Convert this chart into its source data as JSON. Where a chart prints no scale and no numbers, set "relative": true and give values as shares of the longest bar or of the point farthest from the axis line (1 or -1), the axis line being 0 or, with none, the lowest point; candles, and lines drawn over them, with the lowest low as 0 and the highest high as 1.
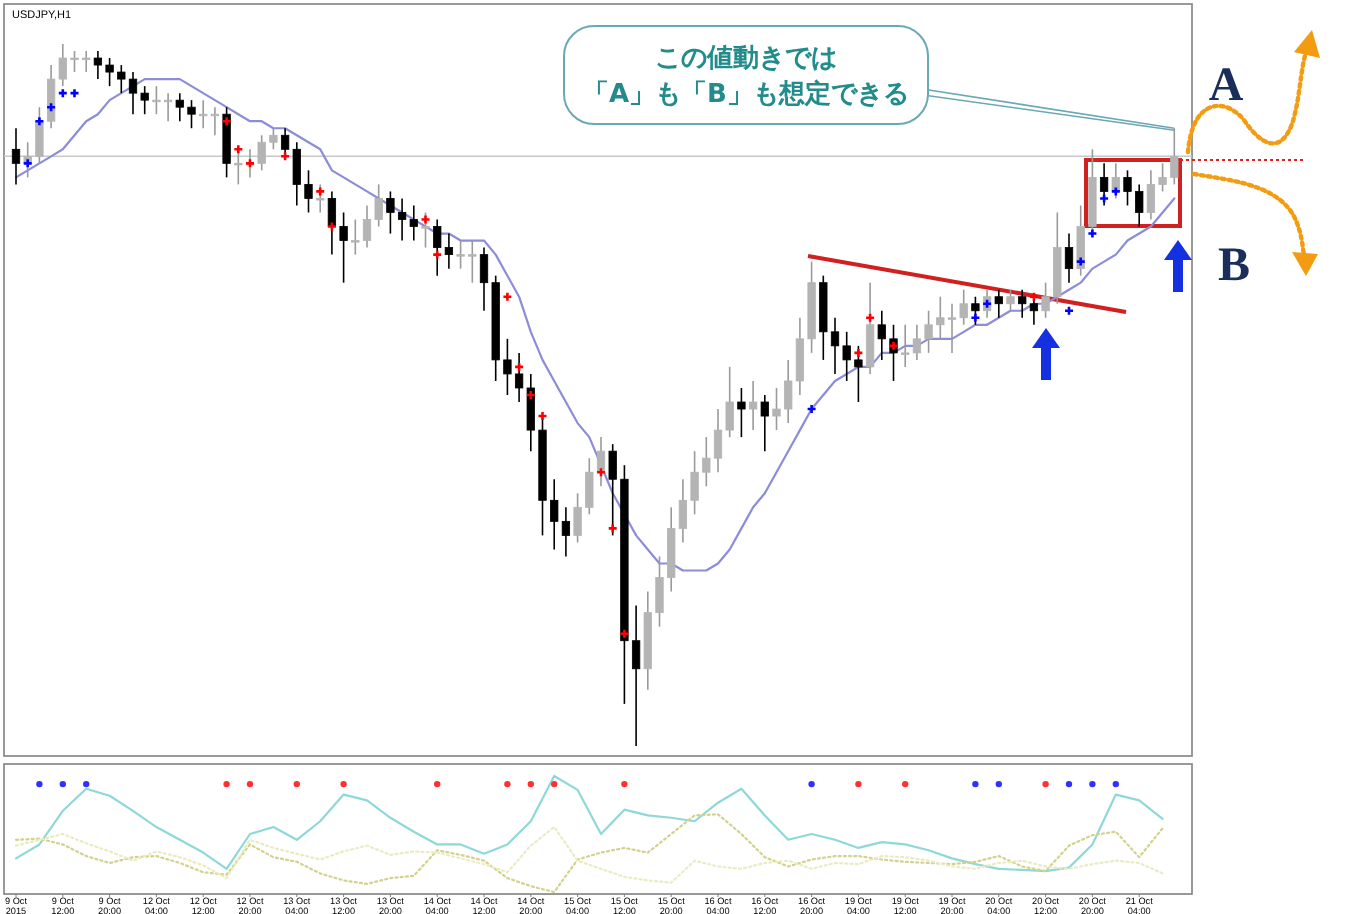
{
  "chart_data": [
    {
      "type": "candlestick",
      "title": "USDJPY,H1",
      "relative": true,
      "categories": [
        null,
        null,
        null,
        null,
        null,
        null,
        null,
        null,
        null,
        null,
        null,
        null,
        null,
        null,
        null,
        null,
        null,
        null,
        null,
        null,
        null,
        null,
        null,
        null,
        null,
        null,
        null,
        null,
        null,
        null,
        null,
        null,
        null,
        null,
        null,
        null,
        null,
        null,
        null,
        null,
        null,
        null,
        null,
        null,
        null,
        null,
        null,
        null,
        null,
        null,
        null,
        null,
        null,
        null,
        null,
        null,
        null,
        null,
        null,
        null,
        null,
        null,
        null,
        null,
        null,
        null,
        null,
        null,
        null,
        null,
        null,
        null,
        null,
        null,
        null,
        null,
        null,
        null,
        null,
        null,
        null,
        null,
        null,
        null,
        null,
        null,
        null,
        null,
        null,
        null,
        null,
        null,
        null,
        null,
        null,
        null,
        null,
        null,
        null,
        null
      ],
      "ohlc": [
        [
          0.85,
          0.88,
          0.8,
          0.83
        ],
        [
          0.83,
          0.86,
          0.81,
          0.84
        ],
        [
          0.84,
          0.91,
          0.83,
          0.89
        ],
        [
          0.89,
          0.97,
          0.88,
          0.95
        ],
        [
          0.95,
          1,
          0.94,
          0.98
        ],
        [
          0.98,
          0.99,
          0.96,
          0.98
        ],
        [
          0.98,
          0.99,
          0.96,
          0.98
        ],
        [
          0.98,
          0.99,
          0.95,
          0.97
        ],
        [
          0.97,
          0.98,
          0.94,
          0.96
        ],
        [
          0.96,
          0.97,
          0.93,
          0.95
        ],
        [
          0.95,
          0.96,
          0.9,
          0.93
        ],
        [
          0.93,
          0.94,
          0.9,
          0.92
        ],
        [
          0.92,
          0.94,
          0.9,
          0.92
        ],
        [
          0.92,
          0.93,
          0.89,
          0.92
        ],
        [
          0.92,
          0.93,
          0.89,
          0.91
        ],
        [
          0.91,
          0.92,
          0.88,
          0.9
        ],
        [
          0.9,
          0.92,
          0.88,
          0.9
        ],
        [
          0.9,
          0.91,
          0.87,
          0.9
        ],
        [
          0.9,
          0.91,
          0.81,
          0.83
        ],
        [
          0.83,
          0.85,
          0.8,
          0.83
        ],
        [
          0.83,
          0.85,
          0.81,
          0.83
        ],
        [
          0.83,
          0.87,
          0.82,
          0.86
        ],
        [
          0.86,
          0.88,
          0.85,
          0.87
        ],
        [
          0.87,
          0.88,
          0.84,
          0.85
        ],
        [
          0.85,
          0.86,
          0.77,
          0.8
        ],
        [
          0.8,
          0.82,
          0.76,
          0.78
        ],
        [
          0.78,
          0.8,
          0.76,
          0.78
        ],
        [
          0.78,
          0.79,
          0.7,
          0.74
        ],
        [
          0.74,
          0.76,
          0.66,
          0.72
        ],
        [
          0.72,
          0.75,
          0.7,
          0.72
        ],
        [
          0.72,
          0.77,
          0.71,
          0.75
        ],
        [
          0.75,
          0.8,
          0.74,
          0.78
        ],
        [
          0.78,
          0.79,
          0.73,
          0.76
        ],
        [
          0.76,
          0.78,
          0.72,
          0.75
        ],
        [
          0.75,
          0.77,
          0.72,
          0.74
        ],
        [
          0.74,
          0.76,
          0.71,
          0.74
        ],
        [
          0.74,
          0.75,
          0.67,
          0.71
        ],
        [
          0.71,
          0.73,
          0.68,
          0.7
        ],
        [
          0.7,
          0.72,
          0.68,
          0.7
        ],
        [
          0.7,
          0.72,
          0.66,
          0.7
        ],
        [
          0.7,
          0.71,
          0.62,
          0.66
        ],
        [
          0.66,
          0.67,
          0.52,
          0.55
        ],
        [
          0.55,
          0.58,
          0.5,
          0.53
        ],
        [
          0.53,
          0.56,
          0.49,
          0.51
        ],
        [
          0.51,
          0.53,
          0.42,
          0.45
        ],
        [
          0.45,
          0.47,
          0.3,
          0.35
        ],
        [
          0.35,
          0.38,
          0.28,
          0.32
        ],
        [
          0.32,
          0.34,
          0.27,
          0.3
        ],
        [
          0.3,
          0.36,
          0.29,
          0.34
        ],
        [
          0.34,
          0.41,
          0.33,
          0.39
        ],
        [
          0.39,
          0.44,
          0.37,
          0.42
        ],
        [
          0.42,
          0.43,
          0.3,
          0.38
        ],
        [
          0.38,
          0.4,
          0.06,
          0.15
        ],
        [
          0.15,
          0.2,
          0,
          0.11
        ],
        [
          0.11,
          0.22,
          0.08,
          0.19
        ],
        [
          0.19,
          0.27,
          0.17,
          0.24
        ],
        [
          0.24,
          0.34,
          0.22,
          0.31
        ],
        [
          0.31,
          0.38,
          0.29,
          0.35
        ],
        [
          0.35,
          0.42,
          0.33,
          0.39
        ],
        [
          0.39,
          0.44,
          0.37,
          0.41
        ],
        [
          0.41,
          0.48,
          0.39,
          0.45
        ],
        [
          0.45,
          0.54,
          0.44,
          0.49
        ],
        [
          0.49,
          0.51,
          0.44,
          0.48
        ],
        [
          0.48,
          0.52,
          0.45,
          0.49
        ],
        [
          0.49,
          0.5,
          0.42,
          0.47
        ],
        [
          0.47,
          0.51,
          0.45,
          0.48
        ],
        [
          0.48,
          0.55,
          0.46,
          0.52
        ],
        [
          0.52,
          0.61,
          0.5,
          0.58
        ],
        [
          0.58,
          0.69,
          0.56,
          0.66
        ],
        [
          0.66,
          0.67,
          0.55,
          0.59
        ],
        [
          0.59,
          0.61,
          0.53,
          0.57
        ],
        [
          0.57,
          0.59,
          0.52,
          0.55
        ],
        [
          0.55,
          0.57,
          0.49,
          0.54
        ],
        [
          0.54,
          0.66,
          0.53,
          0.6
        ],
        [
          0.6,
          0.62,
          0.55,
          0.58
        ],
        [
          0.58,
          0.6,
          0.52,
          0.56
        ],
        [
          0.56,
          0.6,
          0.54,
          0.56
        ],
        [
          0.56,
          0.6,
          0.55,
          0.58
        ],
        [
          0.58,
          0.62,
          0.56,
          0.6
        ],
        [
          0.6,
          0.64,
          0.58,
          0.61
        ],
        [
          0.61,
          0.63,
          0.56,
          0.61
        ],
        [
          0.61,
          0.65,
          0.6,
          0.63
        ],
        [
          0.63,
          0.64,
          0.6,
          0.62
        ],
        [
          0.62,
          0.65,
          0.61,
          0.64
        ],
        [
          0.64,
          0.65,
          0.61,
          0.63
        ],
        [
          0.63,
          0.65,
          0.62,
          0.64
        ],
        [
          0.64,
          0.65,
          0.61,
          0.63
        ],
        [
          0.63,
          0.64,
          0.6,
          0.62
        ],
        [
          0.62,
          0.66,
          0.61,
          0.64
        ],
        [
          0.64,
          0.76,
          0.63,
          0.71
        ],
        [
          0.71,
          0.73,
          0.66,
          0.68
        ],
        [
          0.68,
          0.77,
          0.67,
          0.74
        ],
        [
          0.74,
          0.85,
          0.73,
          0.81
        ],
        [
          0.81,
          0.83,
          0.77,
          0.79
        ],
        [
          0.79,
          0.83,
          0.78,
          0.81
        ],
        [
          0.81,
          0.82,
          0.77,
          0.79
        ],
        [
          0.79,
          0.8,
          0.74,
          0.76
        ],
        [
          0.76,
          0.82,
          0.75,
          0.8
        ],
        [
          0.8,
          0.83,
          0.79,
          0.81
        ],
        [
          0.81,
          0.88,
          0.8,
          0.84
        ]
      ],
      "series": [
        {
          "type": "line",
          "color": "#8c8cd8",
          "values": [
            0.81,
            0.82,
            0.83,
            0.84,
            0.85,
            0.87,
            0.89,
            0.9,
            0.92,
            0.93,
            0.94,
            0.95,
            0.95,
            0.95,
            0.95,
            0.94,
            0.93,
            0.92,
            0.91,
            0.9,
            0.89,
            0.89,
            0.88,
            0.88,
            0.87,
            0.86,
            0.85,
            0.82,
            0.81,
            0.8,
            0.79,
            0.78,
            0.77,
            0.76,
            0.75,
            0.74,
            0.73,
            0.73,
            0.72,
            0.72,
            0.72,
            0.7,
            0.67,
            0.64,
            0.59,
            0.55,
            0.52,
            0.49,
            0.46,
            0.44,
            0.4,
            0.36,
            0.33,
            0.3,
            0.28,
            0.26,
            0.26,
            0.25,
            0.25,
            0.25,
            0.26,
            0.28,
            0.31,
            0.34,
            0.36,
            0.39,
            0.42,
            0.45,
            0.48,
            0.5,
            0.52,
            0.53,
            0.54,
            0.54,
            0.56,
            0.56,
            0.57,
            0.57,
            0.58,
            0.58,
            0.58,
            0.59,
            0.6,
            0.6,
            0.61,
            0.62,
            0.62,
            0.63,
            0.63,
            0.64,
            0.65,
            0.66,
            0.68,
            0.69,
            0.7,
            0.72,
            0.73,
            0.74,
            0.76,
            0.78
          ]
        },
        {
          "type": "scatter",
          "marker": "cross",
          "color": "#ff0000",
          "values": [
            null,
            null,
            null,
            null,
            null,
            null,
            null,
            null,
            null,
            null,
            null,
            null,
            null,
            null,
            null,
            null,
            null,
            null,
            0.89,
            0.85,
            0.83,
            null,
            null,
            0.84,
            null,
            null,
            0.79,
            0.74,
            null,
            null,
            null,
            null,
            null,
            null,
            null,
            0.75,
            0.7,
            null,
            null,
            null,
            null,
            null,
            0.64,
            0.54,
            0.5,
            0.47,
            null,
            null,
            null,
            null,
            0.39,
            0.31,
            0.16,
            null,
            null,
            null,
            null,
            null,
            null,
            null,
            null,
            null,
            null,
            null,
            null,
            null,
            null,
            null,
            null,
            null,
            null,
            null,
            0.56,
            0.61,
            null,
            0.57,
            null,
            null,
            null,
            null,
            null,
            null,
            null,
            null,
            null,
            null,
            null,
            0.64,
            null,
            null,
            null,
            null,
            null,
            null,
            null,
            null,
            null,
            null,
            null,
            null
          ]
        },
        {
          "type": "scatter",
          "marker": "cross",
          "color": "#0000ff",
          "values": [
            null,
            0.83,
            0.89,
            0.91,
            0.93,
            0.93,
            null,
            null,
            null,
            null,
            null,
            null,
            null,
            null,
            null,
            null,
            null,
            null,
            null,
            null,
            null,
            null,
            null,
            null,
            null,
            null,
            null,
            null,
            null,
            null,
            null,
            null,
            null,
            null,
            null,
            null,
            null,
            null,
            null,
            null,
            null,
            null,
            null,
            null,
            null,
            null,
            null,
            null,
            null,
            null,
            null,
            null,
            null,
            null,
            null,
            null,
            null,
            null,
            null,
            null,
            null,
            null,
            null,
            null,
            null,
            null,
            null,
            null,
            0.48,
            null,
            null,
            null,
            null,
            null,
            null,
            null,
            null,
            null,
            null,
            null,
            null,
            null,
            0.61,
            0.63,
            null,
            null,
            null,
            null,
            null,
            null,
            0.62,
            0.69,
            0.73,
            0.78,
            0.79,
            null,
            null,
            null,
            null,
            null
          ]
        }
      ],
      "ref_lines": [
        {
          "axis": "y",
          "value": 0.84,
          "color": "#c8c8c8"
        }
      ],
      "annotations": [
        "この値動きでは",
        "「A」も「B」も想定できる",
        "A",
        "B"
      ]
    },
    {
      "type": "line",
      "relative": true,
      "categories": [
        "9 Oct 2015",
        null,
        "9 Oct 12:00",
        null,
        "9 Oct 20:00",
        null,
        "12 Oct 04:00",
        null,
        "12 Oct 12:00",
        null,
        "12 Oct 20:00",
        null,
        "13 Oct 04:00",
        null,
        "13 Oct 12:00",
        null,
        "13 Oct 20:00",
        null,
        "14 Oct 04:00",
        null,
        "14 Oct 12:00",
        null,
        "14 Oct 20:00",
        null,
        "15 Oct 04:00",
        null,
        "15 Oct 12:00",
        null,
        "15 Oct 20:00",
        null,
        "16 Oct 04:00",
        null,
        "16 Oct 12:00",
        null,
        "16 Oct 20:00",
        null,
        "19 Oct 04:00",
        null,
        "19 Oct 12:00",
        null,
        "19 Oct 20:00",
        null,
        "20 Oct 04:00",
        null,
        "20 Oct 12:00",
        null,
        "20 Oct 20:00",
        null,
        "21 Oct 04:00",
        null
      ],
      "series": [
        {
          "color": "#8fd8d8",
          "values": [
            0.29,
            0.41,
            0.7,
            0.89,
            0.83,
            0.7,
            0.56,
            0.45,
            0.34,
            0.2,
            0.5,
            0.56,
            0.45,
            0.61,
            0.84,
            0.79,
            0.64,
            0.52,
            0.41,
            0.41,
            0.33,
            0.41,
            0.61,
            1,
            0.88,
            0.5,
            0.71,
            0.66,
            0.64,
            0.61,
            0.77,
            0.89,
            0.66,
            0.45,
            0.5,
            0.45,
            0.38,
            0.43,
            0.41,
            0.36,
            0.29,
            0.24,
            0.2,
            0.19,
            0.18,
            0.21,
            0.41,
            0.84,
            0.79,
            0.63
          ]
        },
        {
          "color": "#d2d28c",
          "line_style": "dotted",
          "values": [
            0.45,
            0.46,
            0.41,
            0.31,
            0.25,
            0.3,
            0.31,
            0.25,
            0.17,
            0.15,
            0.41,
            0.3,
            0.26,
            0.16,
            0.1,
            0.07,
            0.12,
            0.14,
            0.36,
            0.32,
            0.27,
            0.12,
            0.05,
            0,
            0.28,
            0.34,
            0.38,
            0.34,
            0.5,
            0.66,
            0.67,
            0.5,
            0.3,
            0.22,
            0.28,
            0.31,
            0.31,
            0.28,
            0.26,
            0.25,
            0.24,
            0.26,
            0.31,
            0.22,
            0.18,
            0.4,
            0.49,
            0.52,
            0.3,
            0.55
          ]
        },
        {
          "color": "#ebebc3",
          "line_style": "dotted",
          "values": [
            0.4,
            0.45,
            0.5,
            0.42,
            0.35,
            0.27,
            0.35,
            0.3,
            0.23,
            0.12,
            0.45,
            0.38,
            0.33,
            0.28,
            0.35,
            0.4,
            0.32,
            0.35,
            0.34,
            0.29,
            0.24,
            0.17,
            0.4,
            0.56,
            0.27,
            0.2,
            0.13,
            0.1,
            0.08,
            0.27,
            0.22,
            0.2,
            0.25,
            0.27,
            0.2,
            0.25,
            0.24,
            0.31,
            0.3,
            0.27,
            0.22,
            0.2,
            0.25,
            0.27,
            0.22,
            0.2,
            0.24,
            0.27,
            0.25,
            0.16
          ]
        },
        {
          "type": "scatter",
          "marker": "circle",
          "color": "#ff3030",
          "values": [
            null,
            null,
            null,
            null,
            null,
            null,
            null,
            null,
            null,
            0.93,
            0.93,
            null,
            0.93,
            null,
            0.93,
            null,
            null,
            null,
            0.93,
            null,
            null,
            0.93,
            0.93,
            0.93,
            null,
            null,
            0.93,
            null,
            null,
            null,
            null,
            null,
            null,
            null,
            null,
            null,
            0.93,
            null,
            0.93,
            null,
            null,
            null,
            null,
            null,
            0.93,
            null,
            null,
            null,
            null,
            null
          ]
        },
        {
          "type": "scatter",
          "marker": "circle",
          "color": "#3030ff",
          "values": [
            null,
            0.93,
            0.93,
            0.93,
            null,
            null,
            null,
            null,
            null,
            null,
            null,
            null,
            null,
            null,
            null,
            null,
            null,
            null,
            null,
            null,
            null,
            null,
            null,
            null,
            null,
            null,
            null,
            null,
            null,
            null,
            null,
            null,
            null,
            null,
            0.93,
            null,
            null,
            null,
            null,
            null,
            null,
            0.93,
            0.93,
            null,
            null,
            0.93,
            0.93,
            0.93,
            null,
            null
          ]
        }
      ]
    }
  ]
}
